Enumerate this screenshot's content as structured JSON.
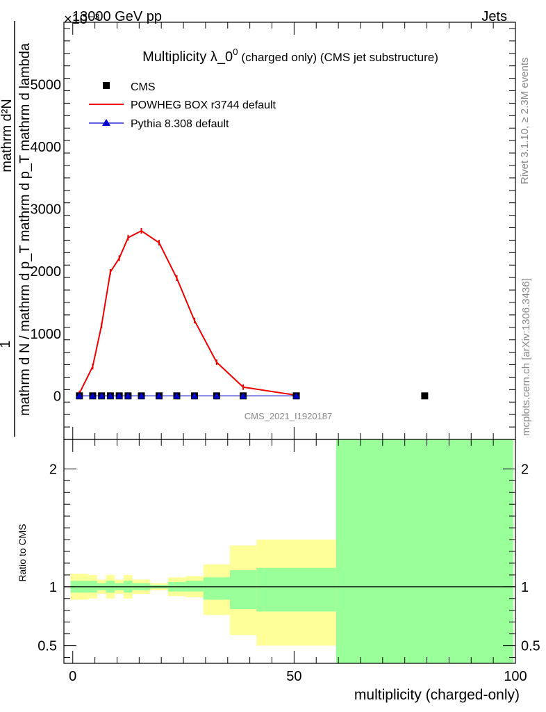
{
  "header": {
    "energy": "13000 GeV pp",
    "process": "Jets"
  },
  "side": {
    "rivet": "Rivet 3.1.10, ≥ 2.3M events",
    "mcplots": "mcplots.cern.ch [arXiv:1306.3436]"
  },
  "colors": {
    "cms": "#000000",
    "powheg": "#ee0000",
    "pythia": "#0000cc",
    "band_inner": "#99ff99",
    "band_outer": "#ffff99"
  },
  "chart_data": [
    {
      "type": "line",
      "title": "Multiplicity λ_0",
      "title_sup": "0",
      "title_suffix": "(charged only) (CMS jet substructure)",
      "watermark": "CMS_2021_I1920187",
      "ylabel_numerator": "1",
      "ylabel_denominator": "mathrm d N / mathrm d p_T mathrm d p_T mathrm d lambda",
      "ylabel_tail": "mathrm d²N",
      "y_multiplier": "×10⁻³",
      "xlim": [
        -2,
        100
      ],
      "ylim": [
        -700,
        6000
      ],
      "yticks": [
        0,
        1000,
        2000,
        3000,
        4000,
        5000
      ],
      "ytick_labels": [
        "0",
        "1000",
        "2000",
        "3000",
        "4000",
        "5000"
      ],
      "legend": [
        "CMS",
        "POWHEG BOX r3744 default",
        "Pythia 8.308 default"
      ],
      "legend_position": "top-left",
      "series": [
        {
          "name": "CMS",
          "marker": "square",
          "x": [
            1.5,
            4.5,
            6.5,
            8.5,
            10.5,
            12.5,
            15.5,
            19.5,
            23.5,
            27.5,
            32.5,
            38.5,
            50.5,
            79.5
          ],
          "y": [
            0,
            0,
            0,
            0,
            0,
            0,
            0,
            0,
            0,
            0,
            0,
            0,
            0,
            0
          ]
        },
        {
          "name": "POWHEG BOX r3744 default",
          "marker": "line",
          "x": [
            1.5,
            4.5,
            6.5,
            8.5,
            10.5,
            12.5,
            15.5,
            19.5,
            23.5,
            27.5,
            32.5,
            38.5,
            50.5
          ],
          "y": [
            40,
            470,
            1130,
            1990,
            2210,
            2540,
            2650,
            2460,
            1890,
            1210,
            540,
            140,
            10
          ]
        },
        {
          "name": "Pythia 8.308 default",
          "marker": "triangle",
          "x": [
            1.5,
            4.5,
            6.5,
            8.5,
            10.5,
            12.5,
            15.5,
            19.5,
            23.5,
            27.5,
            32.5,
            38.5,
            50.5
          ],
          "y": [
            0,
            0,
            0,
            0,
            0,
            0,
            0,
            0,
            0,
            0,
            0,
            0,
            0
          ]
        }
      ]
    },
    {
      "type": "area",
      "ylabel": "Ratio to CMS",
      "xlabel": "multiplicity (charged-only)",
      "xlim": [
        -2,
        100
      ],
      "ylim": [
        0.35,
        2.25
      ],
      "xticks": [
        0,
        50,
        100
      ],
      "xtick_labels": [
        "0",
        "50",
        "100"
      ],
      "yticks": [
        0.5,
        1,
        2
      ],
      "ytick_labels": [
        "0.5",
        "1",
        "2"
      ],
      "reference_line": 1,
      "bins": [
        {
          "x0": -0.5,
          "x1": 3.5,
          "inner": [
            0.95,
            1.05
          ],
          "outer": [
            0.89,
            1.11
          ]
        },
        {
          "x0": 3.5,
          "x1": 5.5,
          "inner": [
            0.95,
            1.05
          ],
          "outer": [
            0.9,
            1.1
          ]
        },
        {
          "x0": 5.5,
          "x1": 7.5,
          "inner": [
            0.97,
            1.03
          ],
          "outer": [
            0.94,
            1.06
          ]
        },
        {
          "x0": 7.5,
          "x1": 9.5,
          "inner": [
            0.95,
            1.05
          ],
          "outer": [
            0.9,
            1.1
          ]
        },
        {
          "x0": 9.5,
          "x1": 11.5,
          "inner": [
            0.97,
            1.03
          ],
          "outer": [
            0.94,
            1.06
          ]
        },
        {
          "x0": 11.5,
          "x1": 13.5,
          "inner": [
            0.95,
            1.05
          ],
          "outer": [
            0.9,
            1.1
          ]
        },
        {
          "x0": 13.5,
          "x1": 17.5,
          "inner": [
            0.97,
            1.03
          ],
          "outer": [
            0.94,
            1.06
          ]
        },
        {
          "x0": 17.5,
          "x1": 21.5,
          "inner": [
            0.985,
            1.015
          ],
          "outer": [
            0.97,
            1.03
          ]
        },
        {
          "x0": 21.5,
          "x1": 25.5,
          "inner": [
            0.96,
            1.04
          ],
          "outer": [
            0.92,
            1.08
          ]
        },
        {
          "x0": 25.5,
          "x1": 29.5,
          "inner": [
            0.96,
            1.05
          ],
          "outer": [
            0.91,
            1.09
          ]
        },
        {
          "x0": 29.5,
          "x1": 35.5,
          "inner": [
            0.89,
            1.08
          ],
          "outer": [
            0.76,
            1.19
          ]
        },
        {
          "x0": 35.5,
          "x1": 41.5,
          "inner": [
            0.81,
            1.14
          ],
          "outer": [
            0.59,
            1.35
          ]
        },
        {
          "x0": 41.5,
          "x1": 59.5,
          "inner": [
            0.79,
            1.16
          ],
          "outer": [
            0.5,
            1.4
          ]
        },
        {
          "x0": 59.5,
          "x1": 99.5,
          "inner": [
            0.35,
            2.25
          ],
          "outer": [
            0.35,
            2.25
          ]
        }
      ]
    }
  ]
}
